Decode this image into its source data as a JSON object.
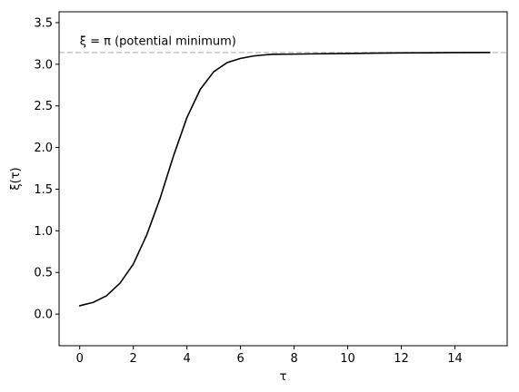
{
  "chart_data": {
    "type": "line",
    "title": "",
    "xlabel": "τ",
    "ylabel": "ξ(τ)",
    "xlim": [
      -0.77,
      15.95
    ],
    "ylim": [
      -0.38,
      3.63
    ],
    "xticks": [
      0,
      2,
      4,
      6,
      8,
      10,
      12,
      14
    ],
    "yticks": [
      0.0,
      0.5,
      1.0,
      1.5,
      2.0,
      2.5,
      3.0,
      3.5
    ],
    "xtick_labels": [
      "0",
      "2",
      "4",
      "6",
      "8",
      "10",
      "12",
      "14"
    ],
    "ytick_labels": [
      "0.0",
      "0.5",
      "1.0",
      "1.5",
      "2.0",
      "2.5",
      "3.0",
      "3.5"
    ],
    "grid": false,
    "series": [
      {
        "color": "#000000",
        "points": [
          [
            0.0,
            0.1
          ],
          [
            0.5,
            0.14
          ],
          [
            1.0,
            0.22
          ],
          [
            1.5,
            0.37
          ],
          [
            2.0,
            0.6
          ],
          [
            2.5,
            0.95
          ],
          [
            3.0,
            1.39
          ],
          [
            3.5,
            1.9
          ],
          [
            4.0,
            2.36
          ],
          [
            4.5,
            2.7
          ],
          [
            5.0,
            2.91
          ],
          [
            5.5,
            3.02
          ],
          [
            6.0,
            3.07
          ],
          [
            6.5,
            3.1
          ],
          [
            7.0,
            3.115
          ],
          [
            7.2,
            3.12
          ],
          [
            8.0,
            3.122
          ],
          [
            9.0,
            3.126
          ],
          [
            10.0,
            3.13
          ],
          [
            11.0,
            3.133
          ],
          [
            12.0,
            3.136
          ],
          [
            13.0,
            3.138
          ],
          [
            14.0,
            3.14
          ],
          [
            15.3,
            3.142
          ]
        ]
      }
    ],
    "reference_line": {
      "y": 3.1416,
      "style": "dashed",
      "color": "#c8c8c8"
    },
    "annotation": {
      "text": "ξ = π (potential minimum)",
      "x": 0.0,
      "y": 3.23
    }
  }
}
